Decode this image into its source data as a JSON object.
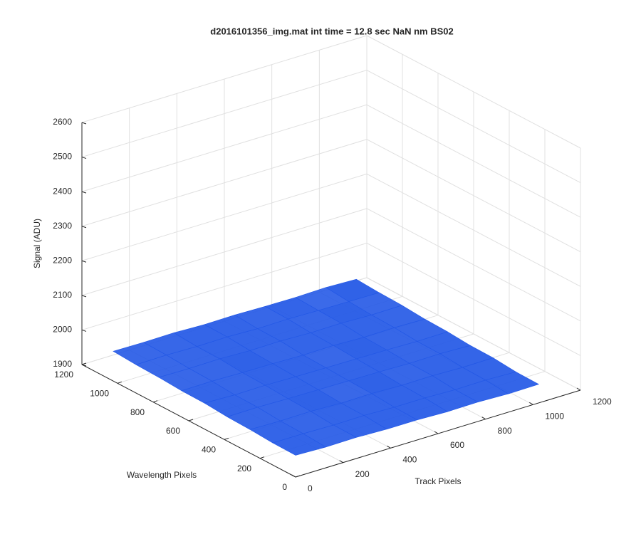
{
  "chart_data": {
    "type": "surface",
    "title": "d2016101356_img.mat int time = 12.8 sec  NaN nm BS02",
    "xlabel": "Track Pixels",
    "ylabel": "Wavelength Pixels",
    "zlabel": "Signal (ADU)",
    "xlim": [
      0,
      1200
    ],
    "ylim": [
      0,
      1200
    ],
    "zlim": [
      1900,
      2600
    ],
    "xticks": [
      0,
      200,
      400,
      600,
      800,
      1000,
      1200
    ],
    "yticks": [
      0,
      200,
      400,
      600,
      800,
      1000,
      1200
    ],
    "zticks": [
      1900,
      2000,
      2100,
      2200,
      2300,
      2400,
      2500,
      2600
    ],
    "grid": true,
    "color": "#2358e6",
    "x": [
      0,
      128,
      256,
      384,
      512,
      640,
      768,
      896,
      1024
    ],
    "y": [
      0,
      128,
      256,
      384,
      512,
      640,
      768,
      896,
      1024
    ],
    "z": [
      [
        1963,
        1960,
        1961,
        1958,
        1958,
        1955,
        1956,
        1953,
        1954
      ],
      [
        1964,
        1964,
        1962,
        1963,
        1960,
        1960,
        1957,
        1958,
        1955
      ],
      [
        1968,
        1966,
        1967,
        1964,
        1965,
        1962,
        1963,
        1960,
        1961
      ],
      [
        1970,
        1971,
        1969,
        1968,
        1967,
        1966,
        1964,
        1965,
        1962
      ],
      [
        1975,
        1972,
        1973,
        1971,
        1970,
        1969,
        1968,
        1966,
        1967
      ],
      [
        1976,
        1977,
        1975,
        1974,
        1972,
        1973,
        1970,
        1971,
        1969
      ],
      [
        1980,
        1979,
        1980,
        1977,
        1978,
        1975,
        1976,
        1973,
        1974
      ],
      [
        1982,
        1983,
        1981,
        1982,
        1979,
        1980,
        1978,
        1977,
        1976
      ],
      [
        1986,
        1985,
        1986,
        1983,
        1984,
        1982,
        1981,
        1983,
        1980
      ]
    ]
  }
}
